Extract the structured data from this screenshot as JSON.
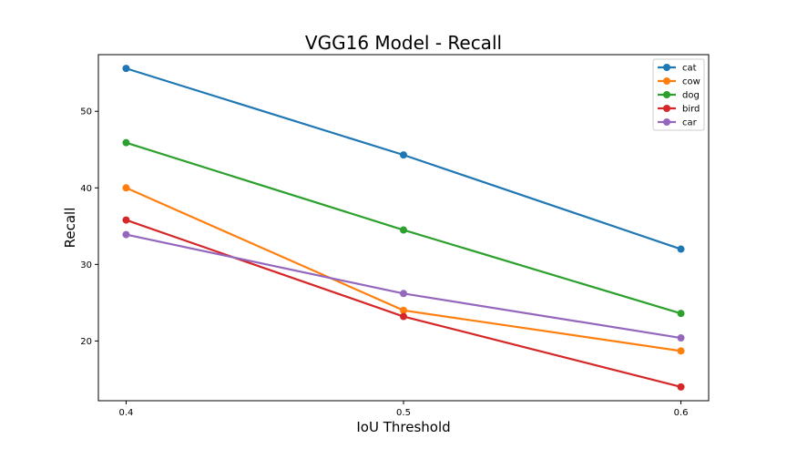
{
  "chart_data": {
    "type": "line",
    "title": "VGG16 Model - Recall",
    "xlabel": "IoU Threshold",
    "ylabel": "Recall",
    "x": [
      0.4,
      0.5,
      0.6
    ],
    "x_tick_labels": [
      "0.4",
      "0.5",
      "0.6"
    ],
    "xlim": [
      0.39,
      0.61
    ],
    "ylim": [
      12.2,
      57.4
    ],
    "y_ticks": [
      20,
      30,
      40,
      50
    ],
    "y_tick_labels": [
      "20",
      "30",
      "40",
      "50"
    ],
    "grid": false,
    "legend_position": "upper right",
    "series": [
      {
        "name": "cat",
        "color": "#1f77b4",
        "values": [
          55.6,
          44.3,
          32.0
        ]
      },
      {
        "name": "cow",
        "color": "#ff7f0e",
        "values": [
          40.0,
          24.0,
          18.7
        ]
      },
      {
        "name": "dog",
        "color": "#2ca02c",
        "values": [
          45.9,
          34.5,
          23.6
        ]
      },
      {
        "name": "bird",
        "color": "#d62728",
        "values": [
          35.8,
          23.2,
          14.0
        ]
      },
      {
        "name": "car",
        "color": "#9467bd",
        "values": [
          33.9,
          26.2,
          20.4
        ]
      }
    ]
  }
}
